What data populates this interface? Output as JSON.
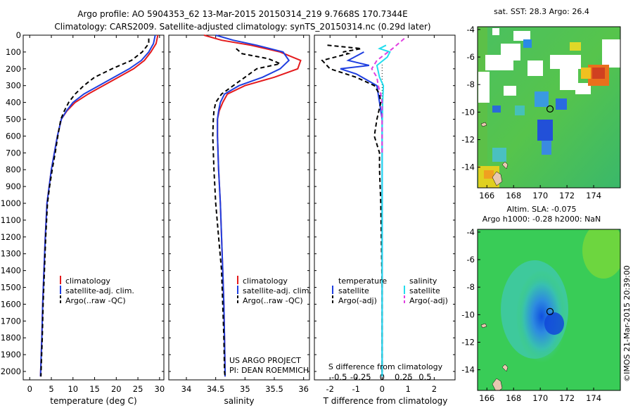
{
  "header": {
    "line1": "Argo profile: AO 5904353_62 13-Mar-2015 20150314_219 9.7668S 170.7344E",
    "line2": "Climatology: CARS2009. Satellite-adjusted climatology: synTS_20150314.nc (0.29d later)"
  },
  "colors": {
    "climatology": "#e41a1c",
    "satellite": "#1f3fe0",
    "argo": "#000000",
    "sal_satellite": "#22ddee",
    "sal_argo": "#e040e0"
  },
  "chart_data": [
    {
      "type": "line",
      "xlabel": "temperature (deg C)",
      "ylabel": "",
      "xlim": [
        -1.5,
        31
      ],
      "ylim": [
        2050,
        0
      ],
      "xticks": [
        0,
        5,
        10,
        15,
        20,
        25,
        30
      ],
      "yticks": [
        0,
        100,
        200,
        300,
        400,
        500,
        600,
        700,
        800,
        900,
        1000,
        1100,
        1200,
        1300,
        1400,
        1500,
        1600,
        1700,
        1800,
        1900,
        2000
      ],
      "legend": {
        "position": "bottom-center",
        "entries": [
          "climatology",
          "satellite-adj. clim.",
          "Argo(..raw -QC)"
        ]
      },
      "series": [
        {
          "name": "climatology",
          "x": [
            29.6,
            29.2,
            28.0,
            26.5,
            24.0,
            20.5,
            17.0,
            13.5,
            10.5,
            8.6,
            7.3,
            6.4,
            5.7,
            5.0,
            4.5,
            4.0,
            3.6,
            3.3,
            3.0,
            2.8,
            2.6,
            2.5
          ],
          "y": [
            0,
            50,
            100,
            150,
            200,
            250,
            300,
            350,
            400,
            450,
            500,
            600,
            700,
            800,
            900,
            1000,
            1200,
            1400,
            1600,
            1800,
            1950,
            2030
          ]
        },
        {
          "name": "satellite-adj. clim.",
          "x": [
            29.0,
            28.6,
            27.5,
            25.8,
            23.0,
            19.5,
            16.0,
            12.5,
            10.0,
            8.5,
            7.3,
            6.4,
            5.7,
            5.0,
            4.5,
            4.0,
            3.6,
            3.3,
            3.0,
            2.8,
            2.6,
            2.5
          ],
          "y": [
            0,
            50,
            100,
            150,
            200,
            250,
            300,
            350,
            400,
            450,
            500,
            600,
            700,
            800,
            900,
            1000,
            1200,
            1400,
            1600,
            1800,
            1950,
            2030
          ]
        },
        {
          "name": "Argo(..raw -QC)",
          "x": [
            27.5,
            27.5,
            26.0,
            23.5,
            19.0,
            15.0,
            12.5,
            10.5,
            9.0,
            8.0,
            7.2,
            6.5,
            5.9,
            5.2,
            4.6,
            4.1,
            3.7,
            3.4,
            3.1,
            2.9,
            2.7,
            2.6
          ],
          "y": [
            20,
            50,
            100,
            150,
            200,
            250,
            300,
            350,
            400,
            450,
            500,
            600,
            700,
            800,
            900,
            1000,
            1200,
            1400,
            1600,
            1800,
            1950,
            2030
          ]
        }
      ]
    },
    {
      "type": "line",
      "xlabel": "salinity",
      "ylabel": "",
      "xlim": [
        33.7,
        36.1
      ],
      "ylim": [
        2050,
        0
      ],
      "xticks": [
        34,
        34.5,
        35,
        35.5,
        36
      ],
      "legend": {
        "position": "bottom-center",
        "entries": [
          "climatology",
          "satellite-adj. clim.",
          "Argo(..raw -QC)"
        ]
      },
      "annotation": [
        "US ARGO PROJECT",
        "PI: DEAN ROEMMICH"
      ],
      "series": [
        {
          "name": "climatology",
          "x": [
            34.3,
            34.6,
            35.1,
            35.6,
            35.95,
            35.9,
            35.5,
            35.0,
            34.7,
            34.62,
            34.56,
            34.53,
            34.53,
            34.55,
            34.58,
            34.6,
            34.62,
            34.64,
            34.65,
            34.66,
            34.66
          ],
          "y": [
            0,
            30,
            60,
            100,
            150,
            200,
            250,
            300,
            350,
            400,
            450,
            500,
            600,
            800,
            1000,
            1200,
            1400,
            1600,
            1800,
            2000,
            2030
          ]
        },
        {
          "name": "satellite-adj. clim.",
          "x": [
            34.5,
            34.8,
            35.2,
            35.65,
            35.75,
            35.6,
            35.3,
            34.9,
            34.65,
            34.58,
            34.55,
            34.53,
            34.53,
            34.55,
            34.58,
            34.6,
            34.62,
            34.64,
            34.65,
            34.66,
            34.66
          ],
          "y": [
            0,
            30,
            60,
            100,
            150,
            200,
            250,
            300,
            350,
            400,
            450,
            500,
            600,
            800,
            1000,
            1200,
            1400,
            1600,
            1800,
            2000,
            2030
          ]
        },
        {
          "name": "Argo(..raw -QC)",
          "x": [
            34.85,
            34.95,
            35.4,
            35.6,
            35.2,
            35.0,
            34.8,
            34.6,
            34.5,
            34.47,
            34.46,
            34.45,
            34.47,
            34.5,
            34.55,
            34.6,
            34.62,
            34.64,
            34.65,
            34.66
          ],
          "y": [
            80,
            110,
            140,
            170,
            200,
            250,
            300,
            350,
            400,
            450,
            500,
            600,
            800,
            1000,
            1200,
            1400,
            1600,
            1800,
            2000,
            2030
          ]
        }
      ]
    },
    {
      "type": "line",
      "xlabel": "T difference from climatology",
      "ylabel": "",
      "xlim": [
        -2.6,
        2.8
      ],
      "ylim": [
        2050,
        0
      ],
      "xticks": [
        -2,
        -1,
        0,
        1,
        2
      ],
      "secondary_xlabel": "S difference from climatology",
      "secondary_ticks": [
        {
          "value": -0.5,
          "label": "-0.5"
        },
        {
          "value": -0.25,
          "label": "-0.25"
        },
        {
          "value": 0,
          "label": "0"
        },
        {
          "value": 0.25,
          "label": "0.25"
        },
        {
          "value": 0.5,
          "label": "0.5"
        }
      ],
      "legend": {
        "position": "bottom-center",
        "headers": [
          "temperature",
          "salinity"
        ],
        "entries": [
          "satellite",
          "Argo(-adj)",
          "satellite",
          "Argo(-adj)"
        ]
      },
      "series": [
        {
          "name": "T satellite",
          "x": [
            -0.7,
            -1.3,
            -0.5,
            -1.6,
            -1.0,
            -0.2,
            -0.1,
            0.0,
            0.0,
            0.0,
            0.0,
            0.0
          ],
          "y": [
            100,
            150,
            180,
            200,
            230,
            300,
            400,
            500,
            700,
            1000,
            1500,
            2030
          ]
        },
        {
          "name": "T Argo(-adj)",
          "x": [
            -2.1,
            -0.8,
            -1.5,
            -1.3,
            -2.3,
            -2.0,
            -1.0,
            -0.3,
            -0.1,
            -0.05,
            -0.2,
            -0.3,
            -0.1,
            -0.1,
            -0.05,
            0.0,
            0.0
          ],
          "y": [
            60,
            80,
            100,
            110,
            150,
            200,
            250,
            300,
            350,
            400,
            500,
            600,
            700,
            800,
            1000,
            1500,
            2030
          ]
        },
        {
          "name": "S satellite",
          "x": [
            0.15,
            -0.1,
            0.3,
            0.2,
            -0.2,
            -0.1,
            0.05,
            0.02,
            0.0,
            0.0,
            0.0
          ],
          "y": [
            60,
            80,
            100,
            130,
            180,
            250,
            300,
            400,
            600,
            1000,
            2030
          ]
        },
        {
          "name": "S Argo(-adj)",
          "x": [
            0.85,
            0.4,
            -0.2,
            -0.4,
            -0.2,
            -0.15,
            -0.05,
            0.0,
            0.0,
            0.0
          ],
          "y": [
            20,
            80,
            150,
            200,
            250,
            300,
            350,
            400,
            500,
            700
          ]
        }
      ]
    },
    {
      "type": "heatmap",
      "title": "sat. SST: 28.3 Argo: 26.4",
      "xlim": [
        165.3,
        176
      ],
      "ylim": [
        -15.5,
        -3.8
      ],
      "xticks": [
        166,
        168,
        170,
        172,
        174
      ],
      "yticks": [
        -4,
        -6,
        -8,
        -10,
        -12,
        -14
      ],
      "marker": {
        "lon": 170.73,
        "lat": -9.77
      }
    },
    {
      "type": "heatmap",
      "title": "Altim. SLA: -0.075",
      "subtitle": "Argo h1000: -0.28 h2000: NaN",
      "xlim": [
        165.3,
        176
      ],
      "ylim": [
        -15.5,
        -3.8
      ],
      "xticks": [
        166,
        168,
        170,
        172,
        174
      ],
      "yticks": [
        -4,
        -6,
        -8,
        -10,
        -12,
        -14
      ],
      "marker": {
        "lon": 170.73,
        "lat": -9.77
      }
    }
  ],
  "footer": {
    "credit": "©IMOS 21-Mar-2015 20:39:00"
  }
}
